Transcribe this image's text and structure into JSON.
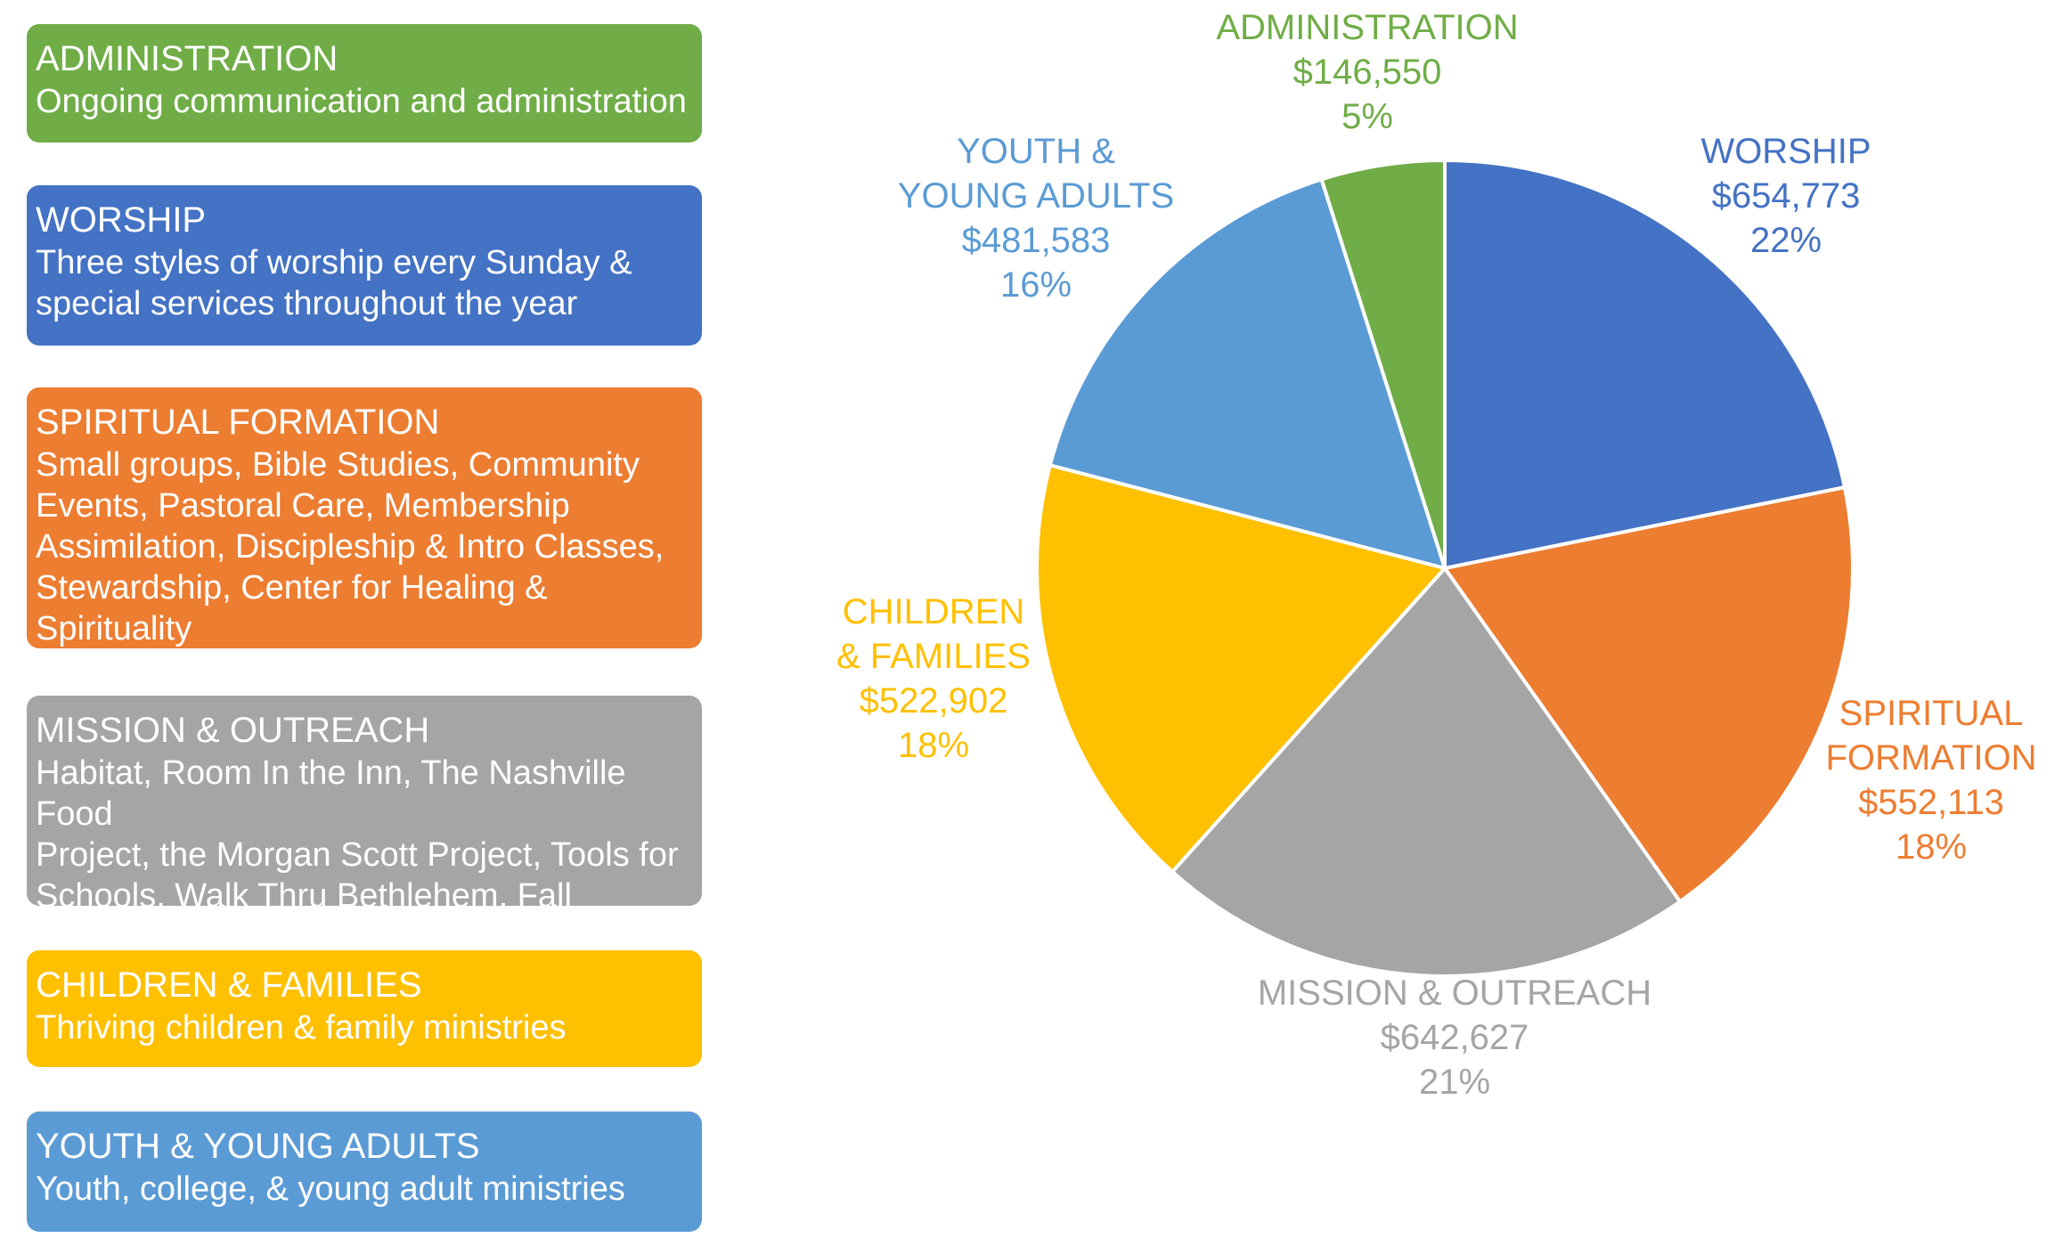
{
  "categories": [
    {
      "key": "administration",
      "title": "ADMINISTRATION",
      "description": [
        "Ongoing communication and administration"
      ],
      "color": "#70ad47"
    },
    {
      "key": "worship",
      "title": "WORSHIP",
      "description": [
        "Three styles of worship every Sunday &",
        "special services throughout the year"
      ],
      "color": "#4472c4"
    },
    {
      "key": "spiritual-formation",
      "title": "SPIRITUAL FORMATION",
      "description": [
        "Small groups, Bible Studies, Community",
        "Events, Pastoral Care, Membership",
        "Assimilation, Discipleship & Intro Classes,",
        "Stewardship, Center for Healing & Spirituality"
      ],
      "color": "#ed7d31"
    },
    {
      "key": "mission-outreach",
      "title": "MISSION & OUTREACH",
      "description": [
        "Habitat, Room In the Inn, The Nashville Food",
        "Project, the Morgan Scott Project, Tools for",
        "Schools, Walk Thru Bethlehem, Fall Hamilton"
      ],
      "color": "#a5a5a5"
    },
    {
      "key": "children-families",
      "title": "CHILDREN & FAMILIES",
      "description": [
        "Thriving children & family ministries"
      ],
      "color": "#ffc000"
    },
    {
      "key": "youth-young-adults",
      "title": "YOUTH & YOUNG ADULTS",
      "description": [
        "Youth, college, & young adult ministries"
      ],
      "color": "#5b9bd5"
    }
  ],
  "chart_data": {
    "type": "pie",
    "slices": [
      {
        "key": "worship",
        "label": [
          "WORSHIP"
        ],
        "value": 654773,
        "amount": "$654,773",
        "percent": "22%",
        "color": "#4472c4"
      },
      {
        "key": "spiritual-formation",
        "label": [
          "SPIRITUAL",
          "FORMATION"
        ],
        "value": 552113,
        "amount": "$552,113",
        "percent": "18%",
        "color": "#ed7d31"
      },
      {
        "key": "mission-outreach",
        "label": [
          "MISSION & OUTREACH"
        ],
        "value": 642627,
        "amount": "$642,627",
        "percent": "21%",
        "color": "#a5a5a5"
      },
      {
        "key": "children-families",
        "label": [
          "CHILDREN",
          "& FAMILIES"
        ],
        "value": 522902,
        "amount": "$522,902",
        "percent": "18%",
        "color": "#ffc000"
      },
      {
        "key": "youth-young-adults",
        "label": [
          "YOUTH &",
          "YOUNG ADULTS"
        ],
        "value": 481583,
        "amount": "$481,583",
        "percent": "16%",
        "color": "#5b9bd5"
      },
      {
        "key": "administration",
        "label": [
          "ADMINISTRATION"
        ],
        "value": 146550,
        "amount": "$146,550",
        "percent": "5%",
        "color": "#70ad47"
      }
    ],
    "start": "12 o'clock",
    "direction": "clockwise",
    "legend": "left"
  }
}
